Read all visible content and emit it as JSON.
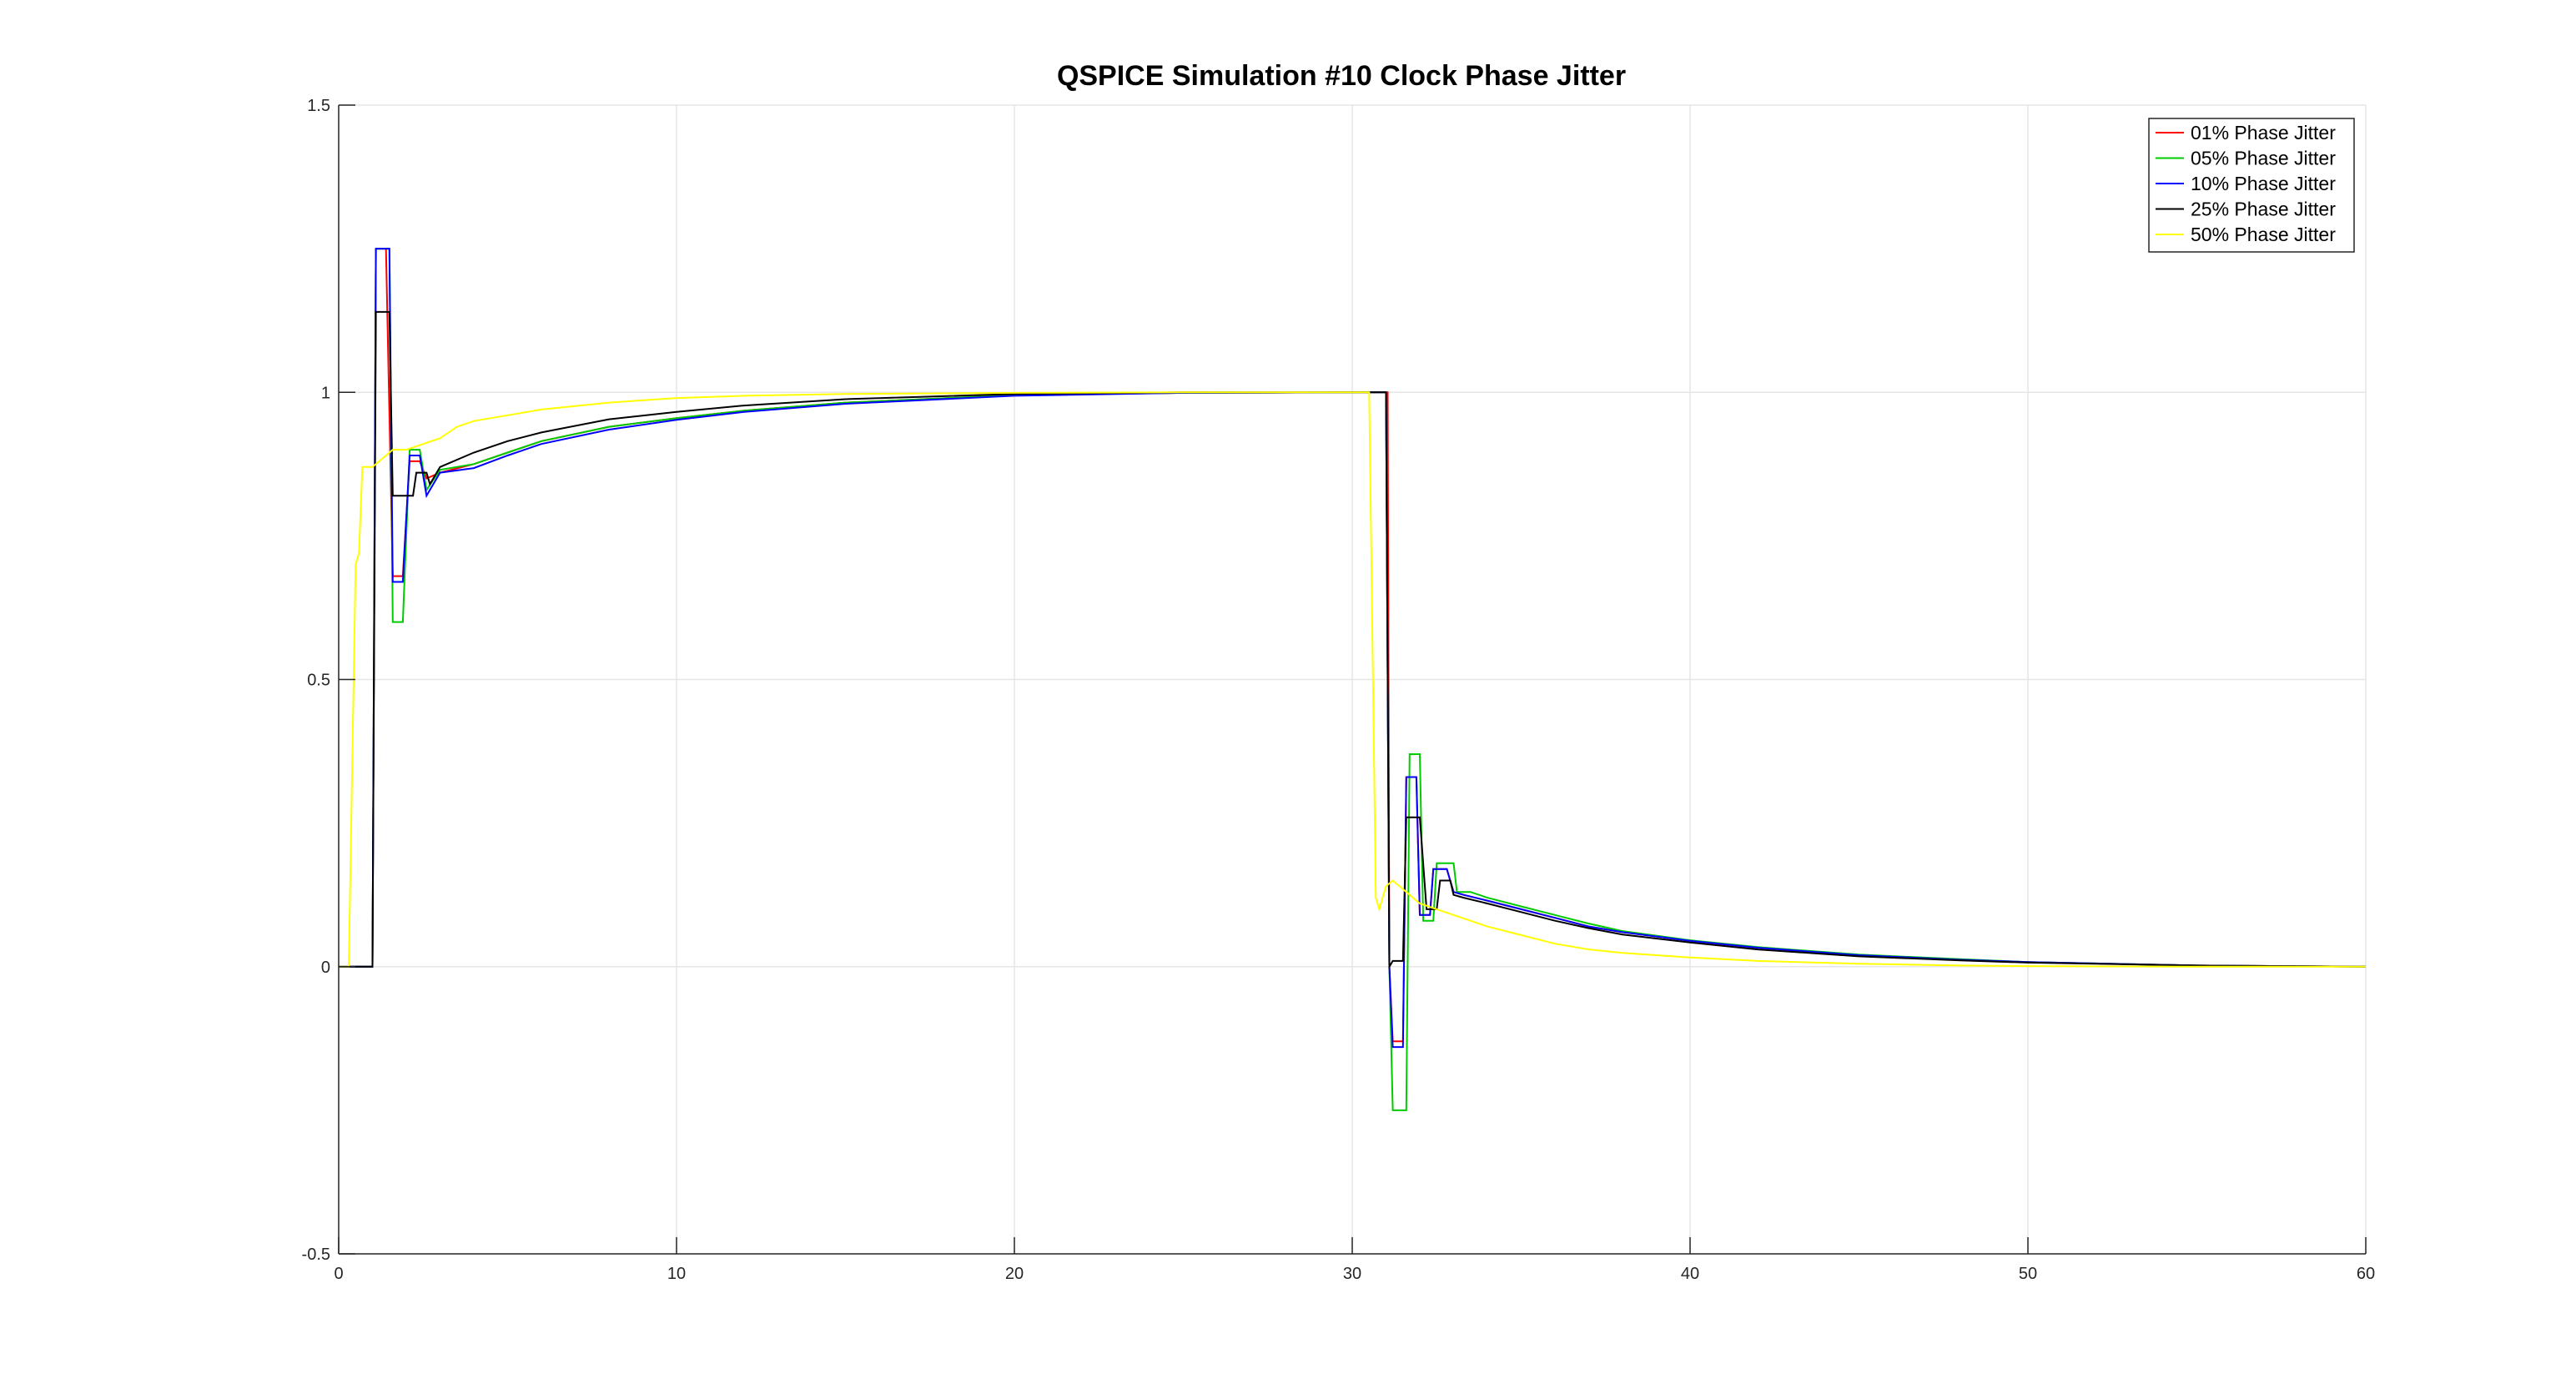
{
  "chart_data": {
    "type": "line",
    "title": "QSPICE Simulation #10 Clock Phase Jitter",
    "xlabel": "",
    "ylabel": "",
    "xlim": [
      0,
      60
    ],
    "ylim": [
      -0.5,
      1.5
    ],
    "xticks": [
      0,
      10,
      20,
      30,
      40,
      50,
      60
    ],
    "xtick_labels": [
      "0",
      "10",
      "20",
      "30",
      "40",
      "50",
      "60"
    ],
    "yticks": [
      -0.5,
      0,
      0.5,
      1,
      1.5
    ],
    "ytick_labels": [
      "-0.5",
      "0",
      "0.5",
      "1",
      "1.5"
    ],
    "grid": true,
    "legend_position": "top-right",
    "series": [
      {
        "name": "01% Phase Jitter",
        "color": "#ff0000",
        "x": [
          0,
          0.9,
          1.0,
          1.1,
          1.4,
          1.6,
          1.9,
          2.1,
          2.4,
          2.6,
          3.0,
          4,
          5,
          6,
          8,
          10,
          12,
          15,
          20,
          25,
          30.0,
          31.05,
          31.1,
          31.2,
          31.5,
          31.6,
          31.9,
          32.0,
          32.3,
          32.4,
          32.8,
          33.0,
          33.3,
          34,
          35,
          36,
          37,
          38,
          40,
          42,
          45,
          48,
          50,
          55,
          60
        ],
        "y": [
          0,
          0,
          0,
          1.25,
          1.25,
          0.68,
          0.68,
          0.88,
          0.88,
          0.85,
          0.86,
          0.875,
          0.895,
          0.915,
          0.94,
          0.955,
          0.968,
          0.982,
          0.995,
          0.999,
          1.0,
          1.0,
          0.0,
          -0.13,
          -0.13,
          0.33,
          0.33,
          0.09,
          0.09,
          0.17,
          0.17,
          0.13,
          0.125,
          0.115,
          0.1,
          0.085,
          0.07,
          0.06,
          0.045,
          0.033,
          0.02,
          0.012,
          0.008,
          0.002,
          0
        ]
      },
      {
        "name": "05% Phase Jitter",
        "color": "#00cc00",
        "x": [
          0,
          0.9,
          1.0,
          1.1,
          1.5,
          1.6,
          1.9,
          2.1,
          2.4,
          2.6,
          3.0,
          4,
          5,
          6,
          8,
          10,
          12,
          15,
          20,
          25,
          30.0,
          31.0,
          31.1,
          31.2,
          31.6,
          31.7,
          32.0,
          32.1,
          32.4,
          32.5,
          33.0,
          33.1,
          33.5,
          34,
          35,
          36,
          37,
          38,
          40,
          42,
          45,
          48,
          50,
          55,
          60
        ],
        "y": [
          0,
          0,
          0,
          1.25,
          1.25,
          0.6,
          0.6,
          0.9,
          0.9,
          0.83,
          0.865,
          0.875,
          0.895,
          0.915,
          0.94,
          0.955,
          0.968,
          0.982,
          0.995,
          0.999,
          1.0,
          1.0,
          0.0,
          -0.25,
          -0.25,
          0.37,
          0.37,
          0.08,
          0.08,
          0.18,
          0.18,
          0.13,
          0.13,
          0.12,
          0.105,
          0.09,
          0.075,
          0.062,
          0.046,
          0.034,
          0.021,
          0.013,
          0.008,
          0.002,
          0
        ]
      },
      {
        "name": "10% Phase Jitter",
        "color": "#0000ff",
        "x": [
          0,
          0.9,
          1.0,
          1.1,
          1.5,
          1.6,
          1.9,
          2.1,
          2.4,
          2.6,
          3.0,
          4,
          5,
          6,
          8,
          10,
          12,
          15,
          20,
          25,
          30.0,
          31.0,
          31.1,
          31.2,
          31.5,
          31.6,
          31.9,
          32.0,
          32.3,
          32.4,
          32.8,
          33.0,
          33.3,
          34,
          35,
          36,
          37,
          38,
          40,
          42,
          45,
          48,
          50,
          55,
          60
        ],
        "y": [
          0,
          0,
          0,
          1.25,
          1.25,
          0.67,
          0.67,
          0.89,
          0.89,
          0.82,
          0.86,
          0.868,
          0.89,
          0.91,
          0.935,
          0.952,
          0.966,
          0.98,
          0.994,
          0.999,
          1.0,
          1.0,
          0.0,
          -0.14,
          -0.14,
          0.33,
          0.33,
          0.09,
          0.09,
          0.17,
          0.17,
          0.13,
          0.125,
          0.115,
          0.1,
          0.085,
          0.07,
          0.06,
          0.045,
          0.033,
          0.02,
          0.012,
          0.008,
          0.002,
          0
        ]
      },
      {
        "name": "25% Phase Jitter",
        "color": "#000000",
        "x": [
          0,
          0.9,
          1.0,
          1.1,
          1.5,
          1.6,
          2.2,
          2.3,
          2.6,
          2.7,
          3.0,
          4,
          5,
          6,
          8,
          10,
          12,
          15,
          20,
          25,
          30.0,
          31.0,
          31.1,
          31.2,
          31.5,
          31.6,
          32.0,
          32.2,
          32.5,
          32.6,
          32.9,
          33.0,
          33.3,
          34,
          35,
          36,
          37,
          38,
          40,
          42,
          45,
          48,
          50,
          55,
          60
        ],
        "y": [
          0,
          0,
          0,
          1.14,
          1.14,
          0.82,
          0.82,
          0.86,
          0.86,
          0.84,
          0.87,
          0.895,
          0.915,
          0.93,
          0.953,
          0.966,
          0.977,
          0.988,
          0.997,
          1.0,
          1.0,
          1.0,
          0.0,
          0.01,
          0.01,
          0.26,
          0.26,
          0.1,
          0.1,
          0.15,
          0.15,
          0.125,
          0.12,
          0.11,
          0.095,
          0.08,
          0.067,
          0.056,
          0.042,
          0.03,
          0.018,
          0.011,
          0.007,
          0.002,
          0
        ]
      },
      {
        "name": "50% Phase Jitter",
        "color": "#ffff00",
        "x": [
          0,
          0.3,
          0.5,
          0.6,
          0.7,
          1.0,
          1.6,
          2.0,
          2.5,
          3.0,
          3.5,
          4,
          5,
          6,
          8,
          10,
          12,
          15,
          20,
          25,
          30.0,
          30.5,
          30.7,
          30.8,
          31.0,
          31.2,
          31.6,
          32.0,
          32.5,
          33.0,
          34,
          35,
          36,
          37,
          38,
          40,
          42,
          45,
          48,
          50,
          55,
          60
        ],
        "y": [
          0,
          0,
          0.7,
          0.72,
          0.87,
          0.87,
          0.9,
          0.9,
          0.91,
          0.92,
          0.94,
          0.95,
          0.96,
          0.97,
          0.982,
          0.99,
          0.994,
          0.997,
          0.999,
          1.0,
          1.0,
          1.0,
          0.12,
          0.1,
          0.14,
          0.15,
          0.13,
          0.11,
          0.1,
          0.09,
          0.07,
          0.055,
          0.04,
          0.03,
          0.024,
          0.016,
          0.01,
          0.005,
          0.002,
          0.001,
          0,
          0
        ]
      }
    ]
  }
}
